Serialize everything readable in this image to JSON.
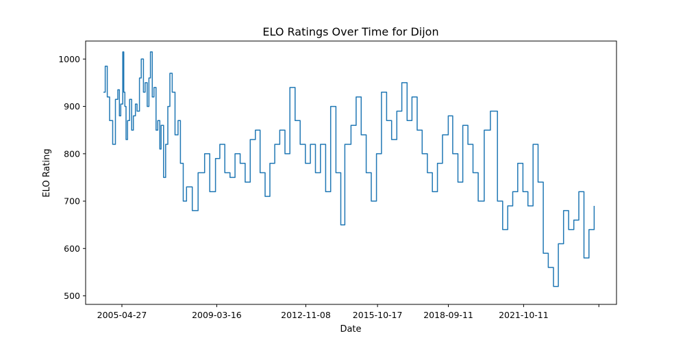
{
  "chart_data": {
    "type": "line",
    "title": "ELO Ratings Over Time for Dijon",
    "xlabel": "Date",
    "ylabel": "ELO Rating",
    "x_ticks": [
      "2005-04-27",
      "2009-03-16",
      "2012-11-08",
      "2015-10-17",
      "2018-09-11",
      "2021-10-11",
      ""
    ],
    "y_ticks": [
      500,
      600,
      700,
      800,
      900,
      1000
    ],
    "ylim": [
      482,
      1038
    ],
    "grid": false,
    "legend": "none",
    "line_color": "#1f77b4",
    "series": [
      {
        "x": [
          "2004-07-25",
          "2004-08-20",
          "2004-09-20",
          "2004-10-25",
          "2004-12-10",
          "2005-01-20",
          "2005-02-25",
          "2005-03-20",
          "2005-04-10",
          "2005-05-10",
          "2005-05-25",
          "2005-06-10",
          "2005-06-28",
          "2005-07-20",
          "2005-08-20",
          "2005-09-20",
          "2005-10-15",
          "2005-11-15",
          "2005-12-10",
          "2006-01-15",
          "2006-02-10",
          "2006-03-15",
          "2006-04-10",
          "2006-05-10",
          "2006-06-05",
          "2006-06-28",
          "2006-07-25",
          "2006-08-20",
          "2006-09-20",
          "2006-10-15",
          "2006-11-15",
          "2006-12-05",
          "2007-01-10",
          "2007-02-10",
          "2007-03-15",
          "2007-04-15",
          "2007-05-20",
          "2007-07-01",
          "2007-08-15",
          "2007-09-20",
          "2007-11-01",
          "2007-12-20",
          "2008-03-15",
          "2008-06-10",
          "2008-09-15",
          "2008-12-01",
          "2009-02-25",
          "2009-05-01",
          "2009-07-15",
          "2009-10-01",
          "2009-12-15",
          "2010-03-01",
          "2010-05-15",
          "2010-07-30",
          "2010-10-15",
          "2010-12-25",
          "2011-03-10",
          "2011-05-20",
          "2011-08-01",
          "2011-10-15",
          "2012-01-01",
          "2012-03-15",
          "2012-06-01",
          "2012-08-15",
          "2012-11-01",
          "2013-01-15",
          "2013-04-01",
          "2013-06-15",
          "2013-09-01",
          "2013-11-15",
          "2014-02-01",
          "2014-04-15",
          "2014-06-15",
          "2014-09-15",
          "2014-12-01",
          "2015-02-15",
          "2015-05-01",
          "2015-07-15",
          "2015-10-01",
          "2015-12-15",
          "2016-03-01",
          "2016-05-15",
          "2016-08-01",
          "2016-10-15",
          "2017-01-01",
          "2017-03-15",
          "2017-06-01",
          "2017-08-15",
          "2017-11-01",
          "2018-01-15",
          "2018-04-01",
          "2018-06-15",
          "2018-09-10",
          "2018-11-15",
          "2019-02-01",
          "2019-04-15",
          "2019-07-01",
          "2019-09-15",
          "2019-12-01",
          "2020-03-01",
          "2020-06-01",
          "2020-09-15",
          "2020-12-01",
          "2021-02-15",
          "2021-05-01",
          "2021-07-15",
          "2021-10-01",
          "2021-12-15",
          "2022-03-01",
          "2022-05-15",
          "2022-08-01",
          "2022-10-15",
          "2023-01-01",
          "2023-03-15",
          "2023-06-01",
          "2023-08-15",
          "2023-11-01",
          "2024-01-15",
          "2024-04-01",
          "2024-06-15",
          "2024-09-01"
        ],
        "y": [
          930,
          985,
          920,
          870,
          820,
          915,
          935,
          880,
          905,
          1015,
          930,
          900,
          830,
          870,
          915,
          850,
          880,
          905,
          890,
          960,
          1000,
          930,
          950,
          900,
          960,
          1015,
          920,
          940,
          850,
          870,
          810,
          860,
          750,
          820,
          900,
          970,
          930,
          840,
          870,
          780,
          700,
          730,
          680,
          760,
          800,
          720,
          790,
          820,
          760,
          750,
          800,
          780,
          740,
          830,
          850,
          760,
          710,
          780,
          820,
          850,
          800,
          940,
          870,
          820,
          780,
          820,
          760,
          820,
          720,
          900,
          760,
          650,
          820,
          860,
          920,
          840,
          760,
          700,
          800,
          930,
          870,
          830,
          890,
          950,
          870,
          920,
          850,
          800,
          760,
          720,
          780,
          840,
          880,
          800,
          740,
          860,
          820,
          760,
          700,
          850,
          890,
          700,
          640,
          690,
          720,
          780,
          720,
          690,
          820,
          740,
          590,
          560,
          520,
          610,
          680,
          640,
          660,
          720,
          580,
          640,
          690
        ]
      }
    ]
  }
}
